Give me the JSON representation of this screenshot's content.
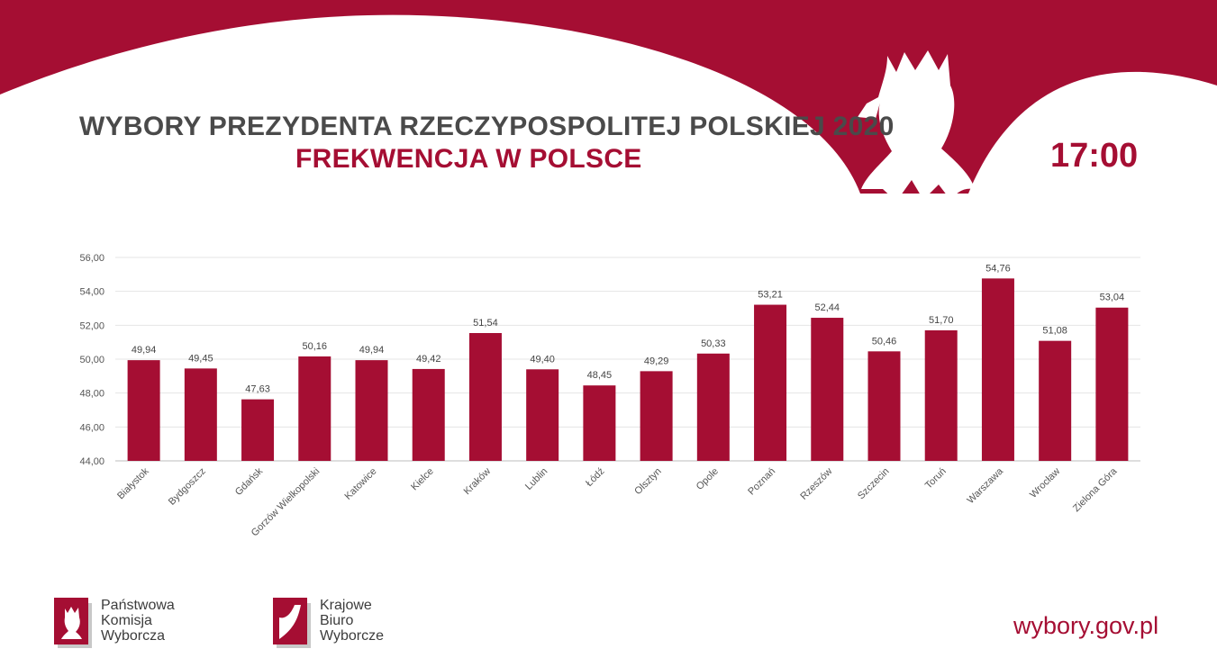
{
  "header": {
    "title": "WYBORY PREZYDENTA RZECZYPOSPOLITEJ POLSKIEJ 2020",
    "subtitle": "FREKWENCJA W POLSCE",
    "time": "17:00"
  },
  "colors": {
    "brand": "#a50e33",
    "title_text": "#4a4a4a",
    "axis_text": "#555555",
    "grid": "#e4e4e4"
  },
  "chart_data": {
    "type": "bar",
    "title": "",
    "xlabel": "",
    "ylabel": "",
    "ylim": [
      44,
      56
    ],
    "yticks": [
      44,
      46,
      48,
      50,
      52,
      54,
      56
    ],
    "ytick_labels": [
      "44,00",
      "46,00",
      "48,00",
      "50,00",
      "52,00",
      "54,00",
      "56,00"
    ],
    "grid": "horizontal",
    "legend": "none",
    "categories": [
      "Białystok",
      "Bydgoszcz",
      "Gdańsk",
      "Gorzów Wielkopolski",
      "Katowice",
      "Kielce",
      "Kraków",
      "Lublin",
      "Łódź",
      "Olsztyn",
      "Opole",
      "Poznań",
      "Rzeszów",
      "Szczecin",
      "Toruń",
      "Warszawa",
      "Wrocław",
      "Zielona Góra"
    ],
    "values": [
      49.94,
      49.45,
      47.63,
      50.16,
      49.94,
      49.42,
      51.54,
      49.4,
      48.45,
      49.29,
      50.33,
      53.21,
      52.44,
      50.46,
      51.7,
      54.76,
      51.08,
      53.04
    ],
    "value_labels": [
      "49,94",
      "49,45",
      "47,63",
      "50,16",
      "49,94",
      "49,42",
      "51,54",
      "49,40",
      "48,45",
      "49,29",
      "50,33",
      "53,21",
      "52,44",
      "50,46",
      "51,70",
      "54,76",
      "51,08",
      "53,04"
    ]
  },
  "footer": {
    "pkw": {
      "line1": "Państwowa",
      "line2": "Komisja",
      "line3": "Wyborcza"
    },
    "kbw": {
      "line1": "Krajowe",
      "line2": "Biuro",
      "line3": "Wyborcze"
    },
    "url": "wybory.gov.pl"
  }
}
